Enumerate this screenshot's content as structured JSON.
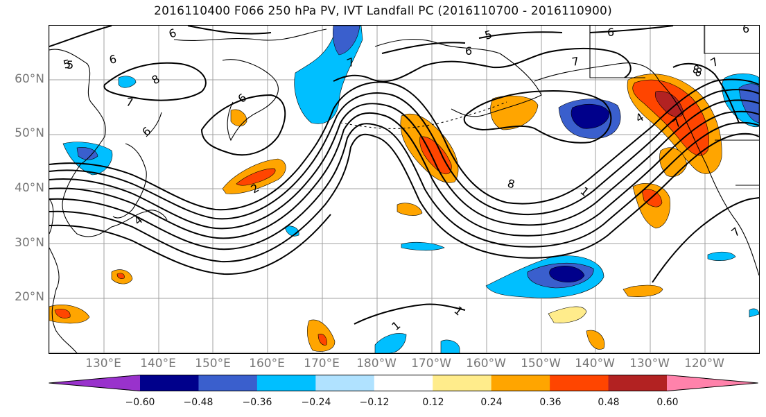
{
  "title": "2016110400 F066 250 hPa PV, IVT Landfall PC (2016110700 - 2016110900)",
  "lat_labels": [
    "60°N",
    "50°N",
    "40°N",
    "30°N",
    "20°N"
  ],
  "lon_labels": [
    "130°E",
    "140°E",
    "150°E",
    "160°E",
    "170°E",
    "180°W",
    "170°W",
    "160°W",
    "150°W",
    "140°W",
    "130°W",
    "120°W"
  ],
  "colorbar": {
    "ticks": [
      "−0.60",
      "−0.48",
      "−0.36",
      "−0.24",
      "−0.12",
      "0.12",
      "0.24",
      "0.36",
      "0.48",
      "0.60"
    ],
    "colors": [
      "#9932cc",
      "#00008b",
      "#3a5fcd",
      "#00bfff",
      "#b0e2ff",
      "#ffffff",
      "#ffec8b",
      "#ffa500",
      "#ff4500",
      "#b22222",
      "#ff82ab"
    ]
  },
  "contour_labels": [
    "5",
    "6",
    "6",
    "5",
    "7",
    "8",
    "6",
    "7",
    "6",
    "7",
    "8",
    "5",
    "6",
    "6",
    "4",
    "8",
    "7",
    "7",
    "8",
    "6",
    "1",
    "1",
    "7",
    "2",
    "1",
    "4"
  ],
  "colors": {
    "contour": "#000000",
    "grid": "#999999",
    "coast": "#000000",
    "label_gray": "#777777"
  }
}
